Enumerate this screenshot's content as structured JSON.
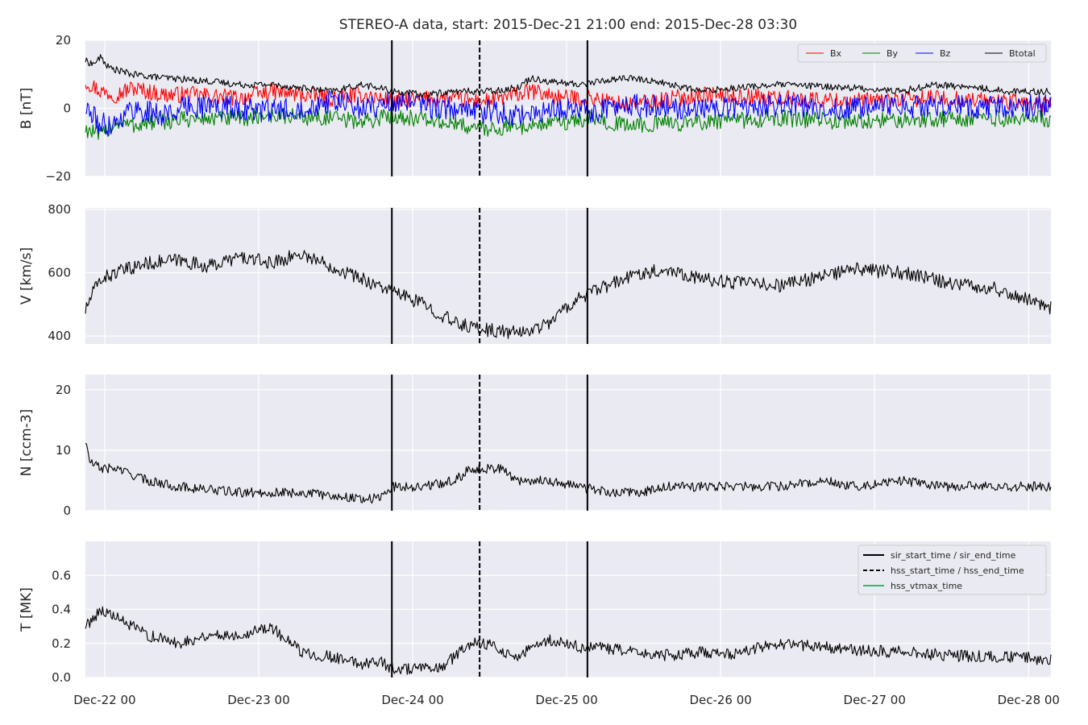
{
  "figure_title": "STEREO-A data, start: 2015-Dec-21 21:00  end: 2015-Dec-28 03:30",
  "colors": {
    "panel_bg": "#EAEAF2",
    "grid": "#FFFFFF",
    "bx": "#FF0000",
    "by": "#008000",
    "bz": "#0000FF",
    "btotal": "#000000",
    "event_line": "#000000",
    "hss_vtmax": "#3CB371"
  },
  "chart_data": [
    {
      "type": "line",
      "ylabel": "B [nT]",
      "ylim": [
        -20,
        20
      ],
      "yticks": [
        -20,
        0,
        20
      ],
      "ytick_labels": [
        "−20",
        "0",
        "20"
      ],
      "legend": {
        "placement": "top-right",
        "entries": [
          "Bx",
          "By",
          "Bz",
          "Btotal"
        ]
      },
      "series": [
        {
          "name": "Bx",
          "color_key": "bx",
          "x": [
            0,
            0.1,
            0.2,
            0.3,
            0.5,
            0.7,
            1.0,
            1.2,
            1.6,
            1.8,
            2.0,
            2.3,
            2.6,
            2.9,
            3.1,
            3.3,
            3.5,
            4.0,
            4.5,
            5.0,
            5.5,
            6.0,
            6.27
          ],
          "y": [
            8,
            5,
            4,
            6,
            4,
            4,
            3,
            5,
            3,
            4,
            2,
            3,
            2,
            5,
            3,
            3,
            1,
            4,
            3,
            2,
            3,
            2,
            1
          ]
        },
        {
          "name": "By",
          "color_key": "by",
          "x": [
            0,
            0.1,
            0.2,
            0.3,
            0.5,
            0.7,
            1.0,
            1.2,
            1.6,
            1.8,
            2.0,
            2.3,
            2.6,
            2.9,
            3.1,
            3.3,
            3.5,
            4.0,
            4.5,
            5.0,
            5.5,
            6.0,
            6.27
          ],
          "y": [
            -6,
            -8,
            -4,
            -5,
            -4,
            -3,
            -3,
            -2,
            -3,
            -4,
            -2,
            -4,
            -6,
            -5,
            -4,
            -3,
            -5,
            -4,
            -3,
            -4,
            -3,
            -3,
            -3
          ]
        },
        {
          "name": "Bz",
          "color_key": "bz",
          "x": [
            0,
            0.1,
            0.2,
            0.3,
            0.5,
            0.7,
            1.0,
            1.2,
            1.6,
            1.8,
            2.0,
            2.3,
            2.6,
            2.9,
            3.1,
            3.3,
            3.5,
            4.0,
            4.5,
            5.0,
            5.5,
            6.0,
            6.27
          ],
          "y": [
            0,
            -5,
            -4,
            0,
            -2,
            1,
            0,
            -1,
            2,
            0,
            2,
            0,
            -1,
            -2,
            0,
            -1,
            1,
            0,
            1,
            0,
            1,
            0,
            1
          ]
        },
        {
          "name": "Btotal",
          "color_key": "btotal",
          "x": [
            0,
            0.05,
            0.1,
            0.15,
            0.3,
            0.5,
            0.8,
            1.0,
            1.2,
            1.4,
            1.6,
            1.8,
            1.9,
            2.0,
            2.2,
            2.4,
            2.6,
            2.8,
            2.9,
            3.0,
            3.2,
            3.5,
            3.7,
            4.0,
            4.2,
            4.5,
            5.0,
            5.3,
            5.5,
            5.8,
            6.0,
            6.27
          ],
          "y": [
            14,
            13,
            15,
            12,
            10,
            9,
            8,
            7,
            7,
            6,
            5,
            7,
            6,
            5,
            4,
            5,
            5,
            6,
            9,
            8,
            7,
            9,
            8,
            5,
            6,
            7,
            6,
            5,
            7,
            6,
            5,
            5
          ]
        }
      ]
    },
    {
      "type": "line",
      "ylabel": "V [km/s]",
      "ylim": [
        375,
        805
      ],
      "yticks": [
        400,
        600,
        800
      ],
      "ytick_labels": [
        "400",
        "600",
        "800"
      ],
      "series": [
        {
          "color_key": "btotal",
          "x": [
            0,
            0.05,
            0.1,
            0.2,
            0.4,
            0.6,
            0.8,
            1.0,
            1.2,
            1.4,
            1.6,
            1.8,
            2.0,
            2.2,
            2.4,
            2.6,
            2.8,
            2.9,
            3.0,
            3.1,
            3.2,
            3.3,
            3.4,
            3.5,
            3.6,
            3.8,
            4.0,
            4.2,
            4.5,
            4.7,
            5.0,
            5.3,
            5.6,
            5.9,
            6.1,
            6.27
          ],
          "y": [
            480,
            540,
            580,
            600,
            630,
            640,
            620,
            650,
            630,
            660,
            620,
            580,
            540,
            500,
            440,
            420,
            410,
            420,
            440,
            480,
            520,
            540,
            560,
            580,
            600,
            610,
            580,
            570,
            560,
            580,
            610,
            600,
            570,
            550,
            520,
            490
          ]
        }
      ]
    },
    {
      "type": "line",
      "ylabel": "N [ccm-3]",
      "ylim": [
        0,
        22.5
      ],
      "yticks": [
        0,
        10,
        20
      ],
      "ytick_labels": [
        "0",
        "10",
        "20"
      ],
      "series": [
        {
          "color_key": "btotal",
          "x": [
            0,
            0.03,
            0.1,
            0.2,
            0.4,
            0.6,
            0.8,
            1.0,
            1.2,
            1.4,
            1.6,
            1.8,
            1.9,
            2.0,
            2.2,
            2.4,
            2.5,
            2.7,
            2.8,
            3.0,
            3.2,
            3.4,
            3.6,
            3.8,
            4.0,
            4.2,
            4.5,
            4.8,
            5.0,
            5.3,
            5.6,
            5.9,
            6.1,
            6.27
          ],
          "y": [
            11.5,
            8,
            7,
            7,
            5,
            4,
            3.5,
            3,
            3,
            3,
            2.5,
            2,
            2,
            4,
            4,
            5,
            7,
            7,
            5,
            5,
            4,
            3,
            3,
            4,
            4,
            4,
            4,
            5,
            4,
            5,
            4,
            4,
            4,
            4
          ]
        }
      ]
    },
    {
      "type": "line",
      "ylabel": "T [MK]",
      "ylim": [
        0,
        0.8
      ],
      "yticks": [
        0.0,
        0.2,
        0.4,
        0.6
      ],
      "ytick_labels": [
        "0.0",
        "0.2",
        "0.4",
        "0.6"
      ],
      "legend": {
        "placement": "top-right",
        "entries": [
          "sir_start_time / sir_end_time",
          "hss_start_time / hss_end_time",
          "hss_vtmax_time"
        ]
      },
      "series": [
        {
          "color_key": "btotal",
          "x": [
            0,
            0.1,
            0.2,
            0.3,
            0.4,
            0.6,
            0.8,
            1.0,
            1.2,
            1.4,
            1.6,
            1.8,
            1.9,
            2.0,
            2.2,
            2.3,
            2.5,
            2.6,
            2.8,
            3.0,
            3.2,
            3.4,
            3.6,
            3.8,
            4.0,
            4.2,
            4.5,
            4.8,
            5.0,
            5.3,
            5.6,
            5.9,
            6.1,
            6.27
          ],
          "y": [
            0.3,
            0.4,
            0.35,
            0.3,
            0.25,
            0.2,
            0.25,
            0.25,
            0.3,
            0.15,
            0.12,
            0.08,
            0.1,
            0.05,
            0.05,
            0.05,
            0.2,
            0.2,
            0.12,
            0.22,
            0.18,
            0.17,
            0.14,
            0.13,
            0.15,
            0.14,
            0.2,
            0.18,
            0.16,
            0.15,
            0.13,
            0.12,
            0.12,
            0.1
          ]
        }
      ]
    }
  ],
  "x_axis": {
    "tick_positions": [
      0.125,
      1.125,
      2.125,
      3.125,
      4.125,
      5.125,
      6.125
    ],
    "tick_labels": [
      "Dec-22 00",
      "Dec-23 00",
      "Dec-24 00",
      "Dec-25 00",
      "Dec-26 00",
      "Dec-27 00",
      "Dec-28 00"
    ],
    "xlim": [
      0,
      6.27
    ]
  },
  "event_lines": [
    {
      "x": 1.99,
      "style": "solid"
    },
    {
      "x": 2.56,
      "style": "dashed"
    },
    {
      "x": 3.26,
      "style": "solid"
    }
  ]
}
